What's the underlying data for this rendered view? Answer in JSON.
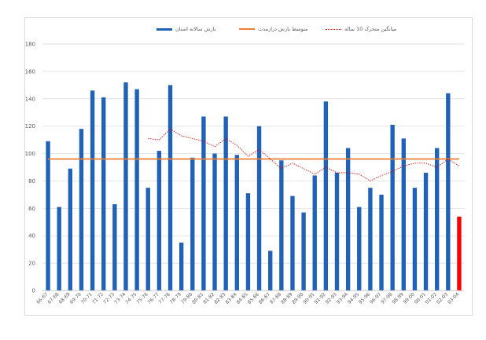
{
  "chart_data": {
    "type": "bar",
    "categories": [
      "66-67",
      "67-68",
      "68-69",
      "69-70",
      "70-71",
      "71-72",
      "72-73",
      "73-74",
      "74-75",
      "75-76",
      "76-77",
      "77-78",
      "78-79",
      "79-80",
      "80-81",
      "81-82",
      "82-83",
      "83-84",
      "84-85",
      "85-86",
      "86-87",
      "87-88",
      "88-89",
      "89-90",
      "90-91",
      "91-92",
      "92-93",
      "93-94",
      "94-95",
      "95-96",
      "96-97",
      "97-98",
      "98-99",
      "99-00",
      "00-01",
      "01-02",
      "02-03",
      "03-04"
    ],
    "series": [
      {
        "name": "بارش سالانه استان",
        "type": "bar",
        "color": "#1f62b7",
        "values": [
          109,
          61,
          89,
          118,
          146,
          141,
          63,
          152,
          147,
          75,
          102,
          150,
          35,
          97,
          127,
          100,
          127,
          99,
          71,
          120,
          29,
          95,
          69,
          57,
          84,
          138,
          86,
          104,
          61,
          75,
          70,
          121,
          111,
          75,
          86,
          104,
          144,
          null
        ]
      },
      {
        "name": "متوسط بارش درازمدت",
        "type": "line",
        "color": "#ed7d31",
        "values": [
          96,
          96,
          96,
          96,
          96,
          96,
          96,
          96,
          96,
          96,
          96,
          96,
          96,
          96,
          96,
          96,
          96,
          96,
          96,
          96,
          96,
          96,
          96,
          96,
          96,
          96,
          96,
          96,
          96,
          96,
          96,
          96,
          96,
          96,
          96,
          96,
          96,
          96
        ]
      },
      {
        "name": "میانگین متحرک 10 ساله",
        "type": "line-dotted",
        "color": "#e00000",
        "values": [
          null,
          null,
          null,
          null,
          null,
          null,
          null,
          null,
          null,
          111,
          110,
          118,
          113,
          111,
          109,
          105,
          111,
          106,
          98,
          103,
          96,
          89,
          93,
          89,
          85,
          90,
          86,
          86,
          85,
          80,
          84,
          87,
          91,
          93,
          93,
          90,
          96,
          91
        ]
      }
    ],
    "highlight": {
      "category": "03-04",
      "value": 54,
      "color": "#ff0000"
    },
    "ylim": [
      0,
      180
    ],
    "yticks": [
      0,
      20,
      40,
      60,
      80,
      100,
      120,
      140,
      160,
      180
    ],
    "grid": true,
    "legend_position": "top"
  }
}
